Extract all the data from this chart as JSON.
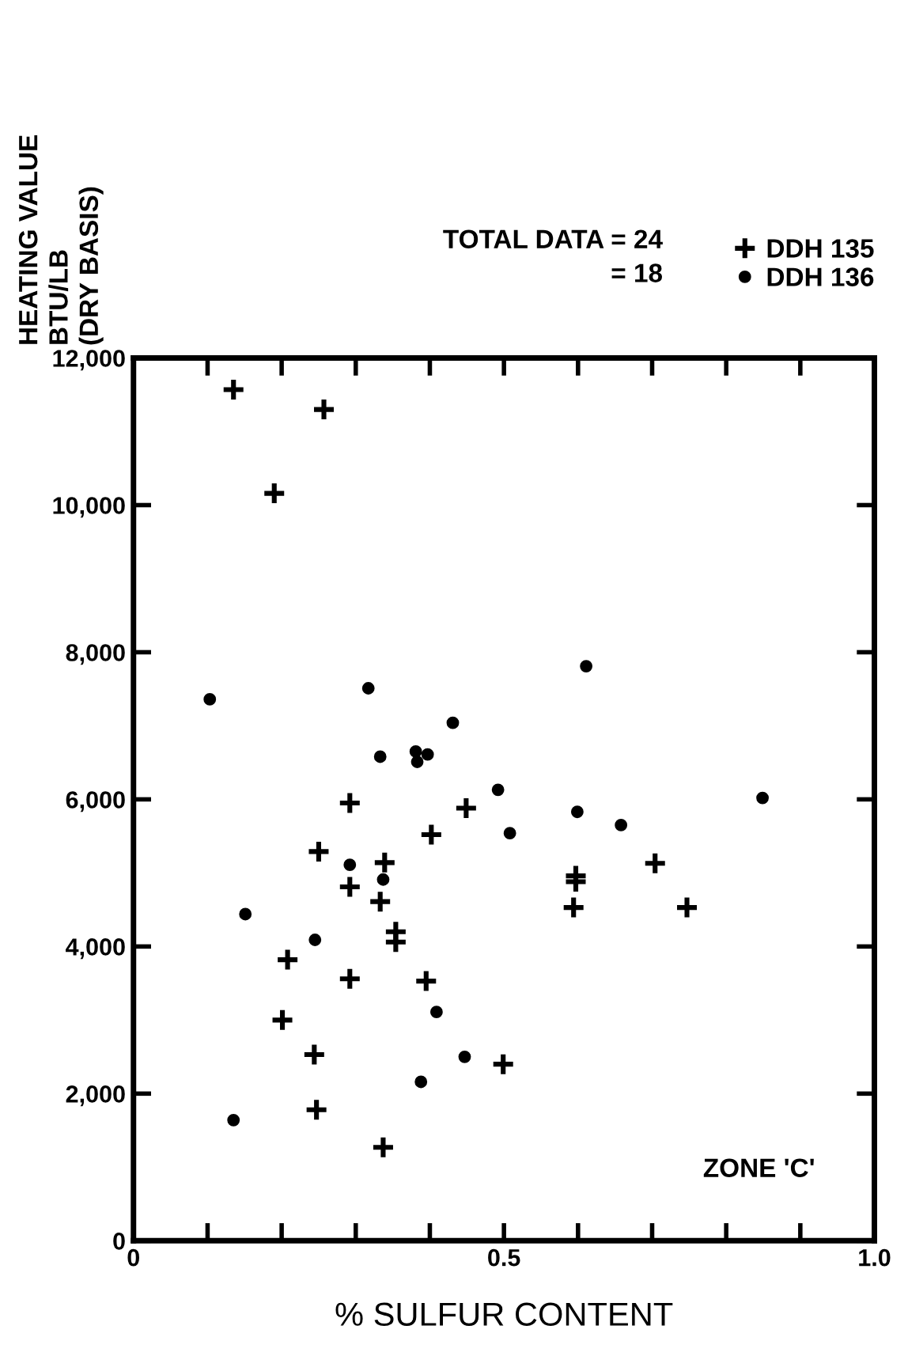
{
  "chart_data": {
    "type": "scatter",
    "xlabel": "% SULFUR CONTENT",
    "ylabel": "HEATING VALUE\nBTU/LB\n(DRY BASIS)",
    "annotations": [
      "TOTAL DATA = 24",
      "= 18",
      "ZONE 'C'"
    ],
    "xlim": [
      0,
      1
    ],
    "xticks": [
      0,
      {
        "value": 0.1,
        "label": null
      },
      {
        "value": 0.2,
        "label": null
      },
      {
        "value": 0.3,
        "label": null
      },
      {
        "value": 0.4,
        "label": null
      },
      {
        "value": 0.5,
        "label": "0.5"
      },
      {
        "value": 0.6,
        "label": null
      },
      {
        "value": 0.7,
        "label": null
      },
      {
        "value": 0.8,
        "label": null
      },
      {
        "value": 0.9,
        "label": null
      },
      {
        "value": 1,
        "label": "1.0"
      }
    ],
    "ylim": [
      0,
      12000
    ],
    "yticks": [
      0,
      {
        "value": 2000,
        "label": "2,000"
      },
      {
        "value": 4000,
        "label": "4,000"
      },
      {
        "value": 6000,
        "label": "6,000"
      },
      {
        "value": 8000,
        "label": "8,000"
      },
      {
        "value": 10000,
        "label": "10,000"
      },
      {
        "value": 12000,
        "label": "12,000"
      }
    ],
    "grid": false,
    "legend": "top right",
    "series": [
      {
        "name": "DDH 135",
        "color": "#000000",
        "marker": "cross",
        "x": [
          0.292,
          0.25,
          0.339,
          0.292,
          0.333,
          0.354,
          0.354,
          0.208,
          0.292,
          0.395,
          0.201,
          0.244,
          0.499,
          0.247,
          0.337,
          0.449,
          0.402,
          0.597,
          0.597,
          0.594,
          0.704,
          0.747,
          0.135,
          0.257,
          0.19
        ],
        "values": [
          5950,
          5290,
          5140,
          4810,
          4610,
          4060,
          4200,
          3820,
          3560,
          3530,
          3000,
          2530,
          2400,
          1780,
          1270,
          5880,
          5520,
          4880,
          4960,
          4530,
          5130,
          4530,
          11570,
          11300,
          10160
        ]
      },
      {
        "name": "DDH 136",
        "color": "#000000",
        "marker": "circle",
        "x": [
          0.103,
          0.317,
          0.611,
          0.431,
          0.333,
          0.381,
          0.383,
          0.397,
          0.492,
          0.599,
          0.508,
          0.658,
          0.849,
          0.292,
          0.337,
          0.151,
          0.245,
          0.409,
          0.447,
          0.388,
          0.135
        ],
        "values": [
          7360,
          7510,
          7810,
          7040,
          6580,
          6650,
          6510,
          6610,
          6130,
          5830,
          5540,
          5650,
          6020,
          5110,
          4910,
          4440,
          4090,
          3110,
          2500,
          2160,
          1640
        ]
      }
    ]
  }
}
